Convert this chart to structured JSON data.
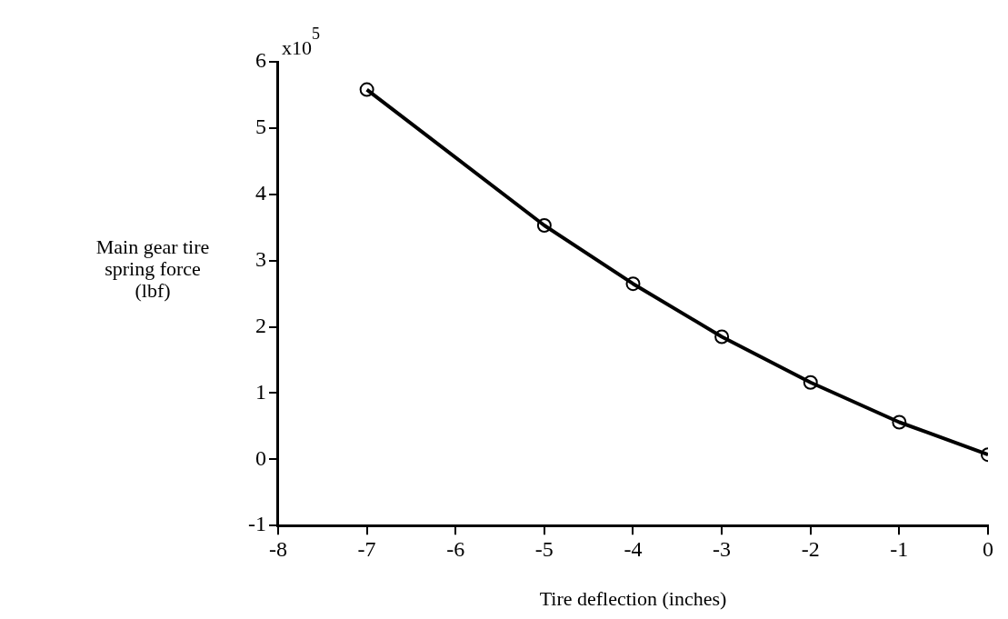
{
  "chart_data": {
    "type": "line",
    "xlabel": "Tire deflection (inches)",
    "ylabel": "Main gear tire spring force (lbf)",
    "annotations": [
      "x10$^{5}$"
    ],
    "x": [
      -7,
      -5,
      -4,
      -3,
      -2,
      -1,
      0
    ],
    "series": [
      {
        "color": "#000000",
        "values": [
          5.58,
          3.53,
          2.65,
          1.85,
          1.16,
          0.56,
          0.07
        ]
      }
    ],
    "xlim": [
      -8,
      0
    ],
    "xticks": [
      -8,
      -7,
      -6,
      -5,
      -4,
      -3,
      -2,
      -1,
      0
    ],
    "ylim": [
      -1,
      6
    ],
    "yticks": [
      -1,
      0,
      1,
      2,
      3,
      4,
      5,
      6
    ],
    "grid": false,
    "legend": false,
    "marker": "circle",
    "line_style": "solid"
  }
}
